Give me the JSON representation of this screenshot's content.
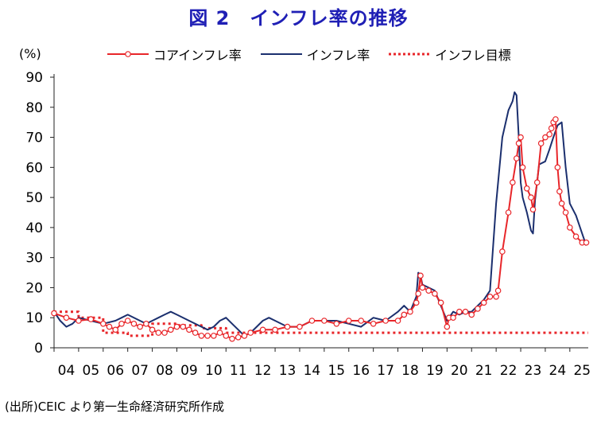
{
  "title": "図 2　インフレ率の推移",
  "ylabel_unit": "(%)",
  "source": "(出所)CEIC より第一生命経済研究所作成",
  "colors": {
    "core": "#e8262a",
    "headline": "#1b2f6e",
    "target": "#e8262a",
    "axis": "#222222",
    "title": "#1f1fb5"
  },
  "chart_data": {
    "type": "line",
    "title": "図 2　インフレ率の推移",
    "xlabel": "",
    "ylabel": "(%)",
    "ylim": [
      0,
      90
    ],
    "yticks": [
      0,
      10,
      20,
      30,
      40,
      50,
      60,
      70,
      80,
      90
    ],
    "xlim": [
      2004.0,
      2025.75
    ],
    "xtick_labels": [
      "04",
      "05",
      "06",
      "07",
      "08",
      "09",
      "10",
      "11",
      "12",
      "13",
      "14",
      "15",
      "16",
      "17",
      "18",
      "19",
      "20",
      "21",
      "22",
      "23",
      "24",
      "25"
    ],
    "grid": false,
    "legend_position": "top",
    "series": [
      {
        "name": "コアインフレ率",
        "style": "line-with-circle-markers",
        "x": [
          2004.0,
          2004.5,
          2005.0,
          2005.5,
          2006.0,
          2006.25,
          2006.5,
          2006.75,
          2007.0,
          2007.25,
          2007.5,
          2007.75,
          2008.0,
          2008.25,
          2008.5,
          2008.75,
          2009.0,
          2009.25,
          2009.5,
          2009.75,
          2010.0,
          2010.25,
          2010.5,
          2010.75,
          2011.0,
          2011.25,
          2011.5,
          2011.75,
          2012.0,
          2012.5,
          2013.0,
          2013.5,
          2014.0,
          2014.5,
          2015.0,
          2015.5,
          2016.0,
          2016.5,
          2017.0,
          2017.5,
          2018.0,
          2018.25,
          2018.5,
          2018.75,
          2018.83,
          2018.92,
          2019.0,
          2019.25,
          2019.5,
          2019.75,
          2020.0,
          2020.08,
          2020.25,
          2020.5,
          2020.75,
          2021.0,
          2021.25,
          2021.5,
          2021.75,
          2022.0,
          2022.08,
          2022.25,
          2022.5,
          2022.67,
          2022.83,
          2022.92,
          2023.0,
          2023.08,
          2023.25,
          2023.42,
          2023.5,
          2023.67,
          2023.83,
          2024.0,
          2024.17,
          2024.25,
          2024.33,
          2024.42,
          2024.5,
          2024.58,
          2024.67,
          2024.83,
          2025.0,
          2025.25,
          2025.5,
          2025.67
        ],
        "y": [
          11.5,
          10,
          9,
          9.5,
          8,
          7,
          6,
          8,
          9,
          8,
          7,
          8,
          6,
          5,
          5,
          6,
          7,
          7,
          6,
          5,
          4,
          4,
          4,
          5,
          4,
          3,
          3.5,
          4,
          5,
          6,
          6,
          7,
          7,
          9,
          9,
          8,
          9,
          9,
          8,
          9,
          9,
          11,
          12,
          15,
          18,
          24,
          20,
          19,
          18,
          15,
          7,
          10,
          10,
          12,
          12,
          11,
          13,
          15,
          17,
          17,
          19,
          32,
          45,
          55,
          63,
          68,
          70,
          60,
          53,
          50,
          46,
          55,
          68,
          70,
          71,
          73,
          75,
          76,
          60,
          52,
          48,
          45,
          40,
          37,
          35,
          35
        ]
      },
      {
        "name": "インフレ率",
        "style": "line",
        "x": [
          2004.0,
          2004.25,
          2004.5,
          2004.75,
          2005.0,
          2005.5,
          2006.0,
          2006.5,
          2006.75,
          2007.0,
          2007.5,
          2007.75,
          2008.0,
          2008.25,
          2008.5,
          2008.75,
          2009.0,
          2009.5,
          2010.0,
          2010.25,
          2010.5,
          2010.75,
          2011.0,
          2011.25,
          2011.5,
          2011.75,
          2012.0,
          2012.25,
          2012.5,
          2012.75,
          2013.0,
          2013.5,
          2014.0,
          2014.5,
          2015.0,
          2015.5,
          2016.0,
          2016.5,
          2017.0,
          2017.5,
          2018.0,
          2018.25,
          2018.5,
          2018.75,
          2018.83,
          2018.92,
          2019.0,
          2019.25,
          2019.5,
          2019.75,
          2020.0,
          2020.25,
          2020.5,
          2020.75,
          2021.0,
          2021.25,
          2021.5,
          2021.75,
          2022.0,
          2022.25,
          2022.5,
          2022.67,
          2022.75,
          2022.83,
          2022.92,
          2023.0,
          2023.08,
          2023.25,
          2023.42,
          2023.5,
          2023.58,
          2023.75,
          2024.0,
          2024.17,
          2024.33,
          2024.5,
          2024.67,
          2024.83,
          2025.0,
          2025.25,
          2025.5,
          2025.67
        ],
        "y": [
          12,
          9,
          7,
          8,
          10,
          9,
          8,
          9,
          10,
          11,
          9,
          8,
          9,
          10,
          11,
          12,
          11,
          9,
          7,
          6,
          7,
          9,
          10,
          8,
          6,
          4,
          5,
          7,
          9,
          10,
          9,
          7,
          7,
          9,
          9,
          9,
          8,
          7,
          10,
          9,
          12,
          14,
          12,
          17,
          25,
          24,
          21,
          20,
          19,
          14,
          9,
          12,
          11,
          12,
          12,
          14,
          16,
          19,
          48,
          70,
          79,
          82,
          85,
          84,
          70,
          55,
          50,
          45,
          39,
          38,
          49,
          61,
          62,
          66,
          70,
          74,
          75,
          60,
          48,
          44,
          38,
          34
        ]
      },
      {
        "name": "インフレ目標",
        "style": "dotted",
        "x": [
          2004.0,
          2005.0,
          2005.0,
          2006.0,
          2006.0,
          2007.0,
          2007.0,
          2008.0,
          2008.0,
          2009.0,
          2009.0,
          2010.0,
          2010.0,
          2011.0,
          2011.0,
          2025.75
        ],
        "y": [
          12,
          12,
          10,
          10,
          5,
          5,
          4,
          4,
          8,
          8,
          7.5,
          7.5,
          6.5,
          6.5,
          5,
          5
        ]
      }
    ]
  }
}
